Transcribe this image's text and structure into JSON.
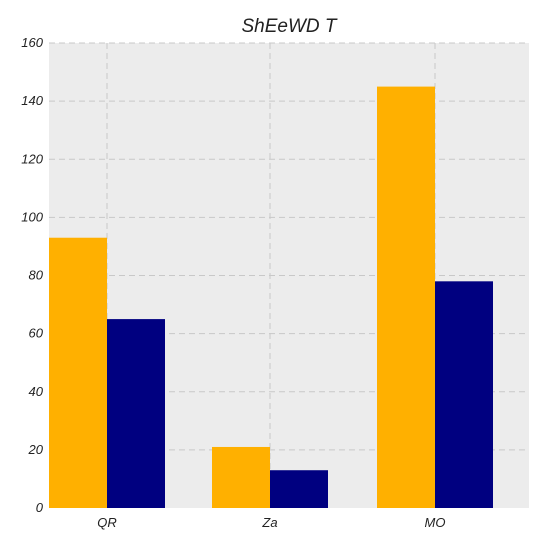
{
  "chart_data": {
    "type": "bar",
    "title": "ShEeWD T",
    "xlabel": "",
    "ylabel": "",
    "categories": [
      "QR",
      "Za",
      "MO"
    ],
    "series": [
      {
        "values": [
          93,
          21,
          145
        ],
        "color": "#ffb000"
      },
      {
        "values": [
          65,
          13,
          78
        ],
        "color": "#000080"
      }
    ],
    "ylim": [
      0,
      160
    ],
    "yticks": [
      "0",
      "20",
      "40",
      "60",
      "80",
      "100",
      "120",
      "140",
      "160"
    ],
    "grid": true,
    "plot_background": "#ececec"
  }
}
